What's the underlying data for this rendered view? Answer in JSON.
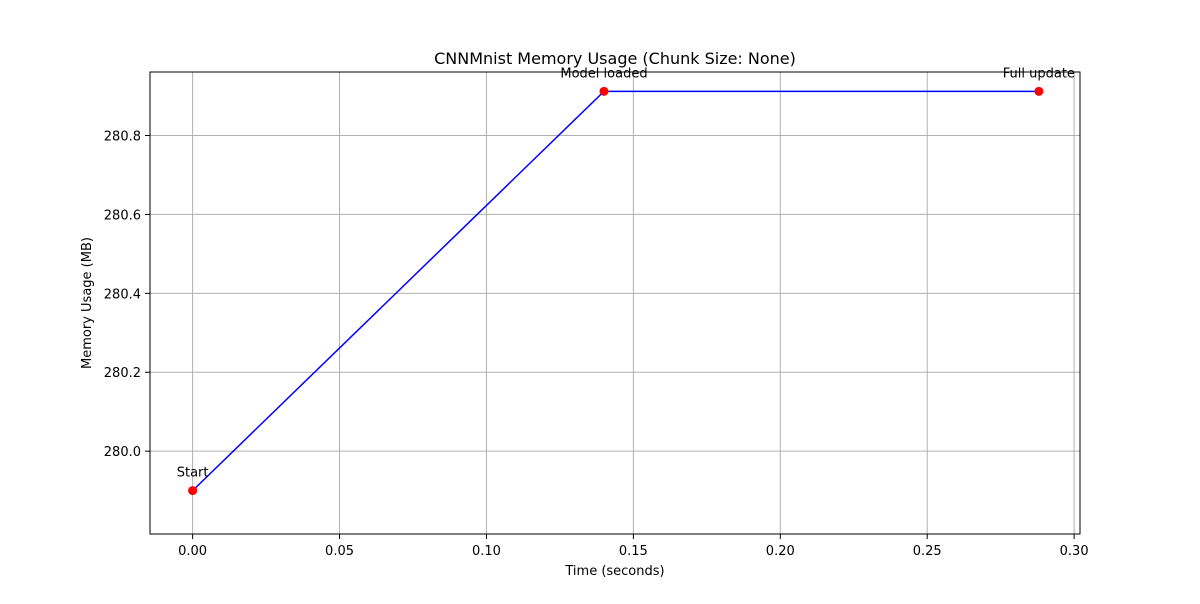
{
  "chart_data": {
    "type": "line",
    "title": "CNNMnist Memory Usage (Chunk Size: None)",
    "xlabel": "Time (seconds)",
    "ylabel": "Memory Usage (MB)",
    "xlim": [
      -0.0145,
      0.302
    ],
    "ylim": [
      279.79,
      280.961
    ],
    "x_ticks": [
      0.0,
      0.05,
      0.1,
      0.15,
      0.2,
      0.25,
      0.3
    ],
    "x_tick_labels": [
      "0.00",
      "0.05",
      "0.10",
      "0.15",
      "0.20",
      "0.25",
      "0.30"
    ],
    "y_ticks": [
      280.0,
      280.2,
      280.4,
      280.6,
      280.8
    ],
    "y_tick_labels": [
      "280.0",
      "280.2",
      "280.4",
      "280.6",
      "280.8"
    ],
    "grid": true,
    "series": [
      {
        "x": [
          0.0,
          0.14,
          0.288
        ],
        "y": [
          279.9,
          280.912,
          280.912
        ],
        "line_color": "#0000ff",
        "marker_color": "#ff0000"
      }
    ],
    "annotations": [
      {
        "label": "Start",
        "x": 0.0,
        "y": 279.9
      },
      {
        "label": "Model loaded",
        "x": 0.14,
        "y": 280.912
      },
      {
        "label": "Full update",
        "x": 0.288,
        "y": 280.912
      }
    ]
  }
}
